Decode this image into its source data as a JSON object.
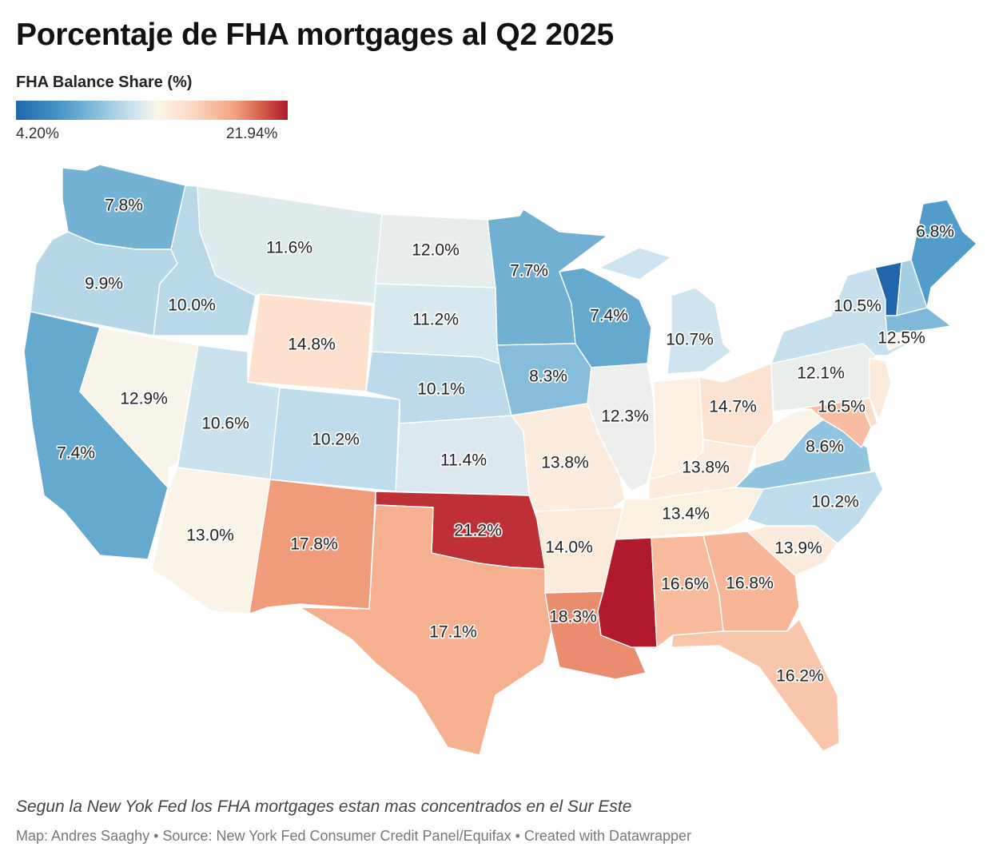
{
  "title": "Porcentaje de FHA mortgages al Q2 2025",
  "legend": {
    "title": "FHA Balance Share (%)",
    "min_label": "4.20%",
    "max_label": "21.94%",
    "min": 4.2,
    "max": 21.94,
    "colors": [
      "#2166ac",
      "#4393c3",
      "#92c5de",
      "#d1e5f0",
      "#fbf5e8",
      "#fddbc7",
      "#f4a582",
      "#d6604d",
      "#b2182b"
    ]
  },
  "states": [
    {
      "id": "wa",
      "label": "7.8%",
      "value": 7.8
    },
    {
      "id": "or",
      "label": "9.9%",
      "value": 9.9
    },
    {
      "id": "ca",
      "label": "7.4%",
      "value": 7.4
    },
    {
      "id": "id",
      "label": "10.0%",
      "value": 10.0
    },
    {
      "id": "nv",
      "label": "12.9%",
      "value": 12.9
    },
    {
      "id": "mt",
      "label": "11.6%",
      "value": 11.6
    },
    {
      "id": "wy",
      "label": "14.8%",
      "value": 14.8
    },
    {
      "id": "ut",
      "label": "10.6%",
      "value": 10.6
    },
    {
      "id": "az",
      "label": "13.0%",
      "value": 13.0
    },
    {
      "id": "co",
      "label": "10.2%",
      "value": 10.2
    },
    {
      "id": "nm",
      "label": "17.8%",
      "value": 17.8
    },
    {
      "id": "nd",
      "label": "12.0%",
      "value": 12.0
    },
    {
      "id": "sd",
      "label": "11.2%",
      "value": 11.2
    },
    {
      "id": "ne",
      "label": "10.1%",
      "value": 10.1
    },
    {
      "id": "ks",
      "label": "11.4%",
      "value": 11.4
    },
    {
      "id": "ok",
      "label": "21.2%",
      "value": 21.2
    },
    {
      "id": "tx",
      "label": "17.1%",
      "value": 17.1
    },
    {
      "id": "mn",
      "label": "7.7%",
      "value": 7.7
    },
    {
      "id": "ia",
      "label": "8.3%",
      "value": 8.3
    },
    {
      "id": "mo",
      "label": "13.8%",
      "value": 13.8
    },
    {
      "id": "ar",
      "label": "14.0%",
      "value": 14.0
    },
    {
      "id": "la",
      "label": "18.3%",
      "value": 18.3
    },
    {
      "id": "wi",
      "label": "7.4%",
      "value": 7.4
    },
    {
      "id": "il",
      "label": "12.3%",
      "value": 12.3
    },
    {
      "id": "mi",
      "label": "10.7%",
      "value": 10.7
    },
    {
      "id": "in",
      "label": "",
      "value": 13.5
    },
    {
      "id": "oh",
      "label": "14.7%",
      "value": 14.7
    },
    {
      "id": "ky",
      "label": "13.8%",
      "value": 13.8
    },
    {
      "id": "tn",
      "label": "13.4%",
      "value": 13.4
    },
    {
      "id": "ms",
      "label": "",
      "value": 21.9
    },
    {
      "id": "al",
      "label": "16.6%",
      "value": 16.6
    },
    {
      "id": "ga",
      "label": "16.8%",
      "value": 16.8
    },
    {
      "id": "fl",
      "label": "16.2%",
      "value": 16.2
    },
    {
      "id": "sc",
      "label": "13.9%",
      "value": 13.9
    },
    {
      "id": "nc",
      "label": "10.2%",
      "value": 10.2
    },
    {
      "id": "va",
      "label": "8.6%",
      "value": 8.6
    },
    {
      "id": "wv",
      "label": "",
      "value": 13.0
    },
    {
      "id": "md",
      "label": "16.5%",
      "value": 16.5
    },
    {
      "id": "de",
      "label": "",
      "value": 15.2
    },
    {
      "id": "pa",
      "label": "12.1%",
      "value": 12.1
    },
    {
      "id": "nj",
      "label": "",
      "value": 14.0
    },
    {
      "id": "ny",
      "label": "10.5%",
      "value": 10.5
    },
    {
      "id": "ct",
      "label": "",
      "value": 13.0
    },
    {
      "id": "ri",
      "label": "12.5%",
      "value": 12.5
    },
    {
      "id": "ma",
      "label": "",
      "value": 8.1
    },
    {
      "id": "vt",
      "label": "",
      "value": 4.2
    },
    {
      "id": "nh",
      "label": "",
      "value": 9.3
    },
    {
      "id": "me",
      "label": "6.8%",
      "value": 6.8
    }
  ],
  "subtitle": "Segun la New Yok Fed los FHA mortgages estan mas concentrados en el Sur Este",
  "credits": "Map: Andres Saaghy • Source: New York Fed Consumer Credit Panel/Equifax • Created with Datawrapper"
}
